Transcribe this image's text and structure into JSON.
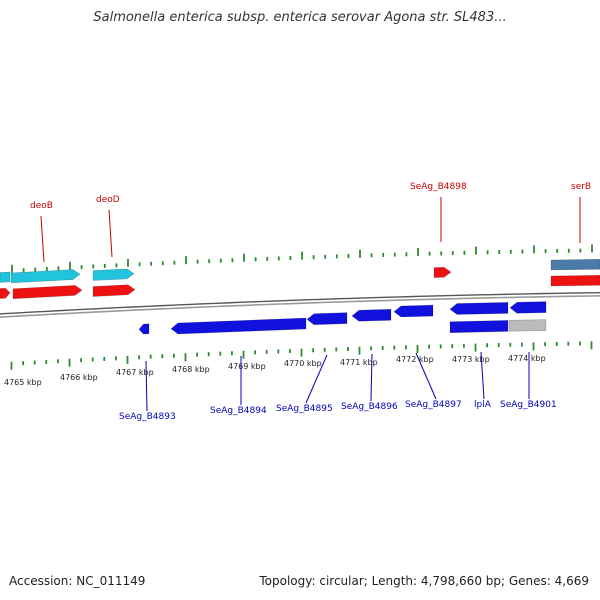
{
  "title": "Salmonella enterica subsp. enterica serovar Agona str. SL483...",
  "footer": {
    "accession": "Accession: NC_011149",
    "summary": "Topology: circular; Length: 4,798,660 bp; Genes: 4,669"
  },
  "colors": {
    "backbone": "#7a7a7a",
    "tick": "#2f8a2f",
    "gene_label_top": "#cc0000",
    "gene_label_bottom": "#0000bb",
    "feature_cyan": "#22c4dd",
    "feature_red": "#ee1111",
    "feature_blue": "#1111dd",
    "feature_steel": "#4a7aa8",
    "feature_gray": "#bbbbbb"
  },
  "scale": {
    "unit": "kbp",
    "ticks_outer": [
      "4765 kbp",
      "4766 kbp",
      "4767 kbp",
      "4768 kbp",
      "4769 kbp",
      "4770 kbp",
      "4771 kbp",
      "4772 kbp",
      "4773 kbp",
      "4774 kbp"
    ]
  },
  "genes_top": [
    "deoB",
    "deoD",
    "SeAg_B4898",
    "serB"
  ],
  "genes_bottom": [
    "SeAg_B4893",
    "SeAg_B4894",
    "SeAg_B4895",
    "SeAg_B4896",
    "SeAg_B4897",
    "lplA",
    "SeAg_B4901"
  ]
}
